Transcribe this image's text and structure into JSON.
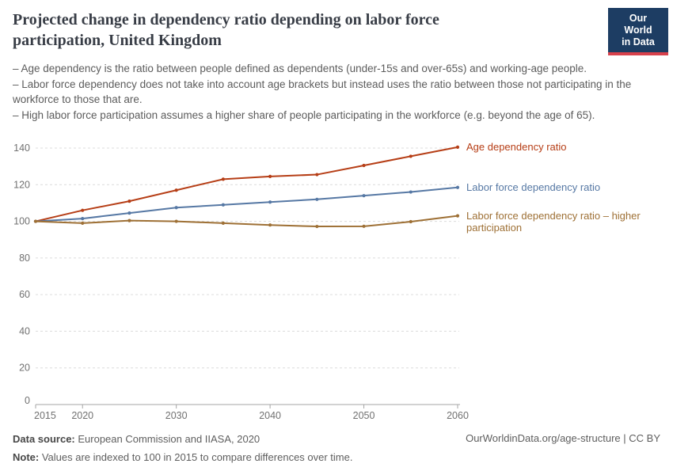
{
  "header": {
    "title": "Projected change in dependency ratio depending on labor force participation, United Kingdom",
    "logo": {
      "line1": "Our World",
      "line2": "in Data"
    }
  },
  "colors": {
    "logo_bg": "#1d3d63",
    "logo_accent": "#d8414c",
    "age_dependency": "#b63e16",
    "labor_force": "#5678a4",
    "labor_force_higher": "#9e7035"
  },
  "subtitle": {
    "bullets": [
      "– Age dependency is the ratio between people defined as dependents (under-15s and over-65s) and working-age people.",
      "– Labor force dependency does not take into account age brackets but instead uses the ratio between those not participating in the workforce to those that are.",
      "– High labor force participation assumes a higher share of people participating in the workforce (e.g. beyond the age of 65)."
    ]
  },
  "chart_data": {
    "type": "line",
    "title": "Projected change in dependency ratio depending on labor force participation, United Kingdom",
    "x": [
      2015,
      2020,
      2025,
      2030,
      2035,
      2040,
      2045,
      2050,
      2055,
      2060
    ],
    "series": [
      {
        "name": "Age dependency ratio",
        "color": "#b63e16",
        "values": [
          100,
          106,
          111,
          117,
          123,
          124.5,
          125.5,
          130.5,
          135.5,
          140.5
        ]
      },
      {
        "name": "Labor force dependency ratio",
        "color": "#5678a4",
        "values": [
          100,
          101.5,
          104.5,
          107.5,
          109,
          110.5,
          112,
          114,
          116,
          118.5
        ]
      },
      {
        "name": "Labor force dependency ratio – higher participation",
        "color": "#9e7035",
        "values": [
          100,
          99,
          100.4,
          100,
          99,
          98,
          97.2,
          97.3,
          99.8,
          103
        ]
      }
    ],
    "ylim": [
      0,
      140
    ],
    "yticks": [
      0,
      20,
      40,
      60,
      80,
      100,
      120,
      140
    ],
    "xticks": [
      2015,
      2020,
      2030,
      2040,
      2050,
      2060
    ],
    "grid": "dashed horizontal",
    "legend_position": "right-of-line-ends",
    "note_indexing": "Values indexed to 100 in 2015"
  },
  "footer": {
    "source_label": "Data source:",
    "source_text": " European Commission and IIASA, 2020",
    "note_label": "Note:",
    "note_text": " Values are indexed to 100 in 2015 to compare differences over time.",
    "credit": "OurWorldinData.org/age-structure | CC BY"
  }
}
